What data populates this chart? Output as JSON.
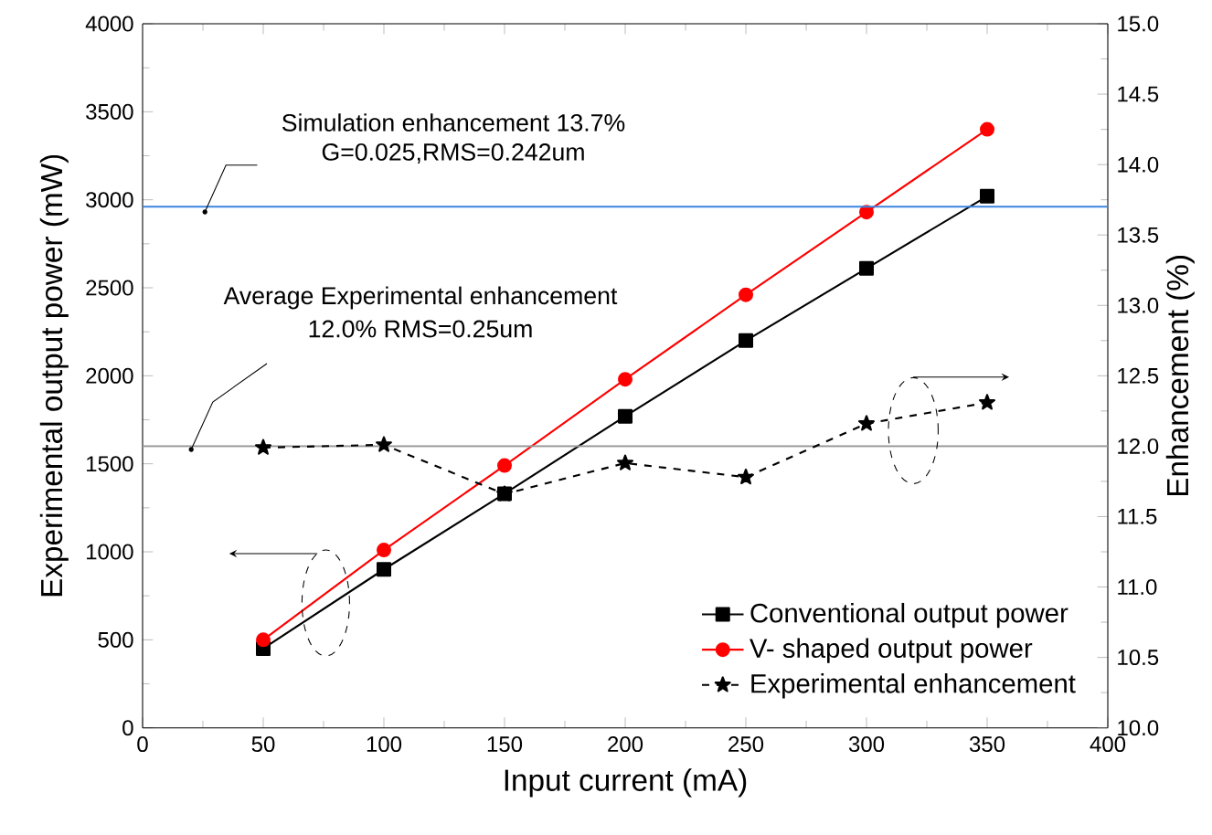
{
  "chart_data": {
    "type": "line",
    "xlabel": "Input current (mA)",
    "ylabel": "Experimental output power (mW)",
    "y2label": "Enhancement (%)",
    "x": [
      50,
      100,
      150,
      200,
      250,
      300,
      350
    ],
    "series": [
      {
        "name": "Conventional  output power",
        "color": "#000000",
        "marker": "square",
        "line_style": "solid",
        "values": [
          450,
          900,
          1330,
          1770,
          2200,
          2610,
          3020
        ]
      },
      {
        "name": "V- shaped  output  power",
        "color": "#ff0000",
        "marker": "circle",
        "line_style": "solid",
        "values": [
          500,
          1010,
          1490,
          1980,
          2460,
          2930,
          3400
        ]
      },
      {
        "name": "Experimental enhancement",
        "color": "#000000",
        "marker": "star",
        "line_style": "dashed",
        "axis": "y2",
        "values": [
          11.99,
          12.01,
          11.66,
          11.88,
          11.78,
          12.16,
          12.31
        ]
      }
    ],
    "xlim": [
      0,
      400
    ],
    "xticks": [
      0,
      50,
      100,
      150,
      200,
      250,
      300,
      350,
      400
    ],
    "ylim": [
      0,
      4000
    ],
    "yticks": [
      0,
      500,
      1000,
      1500,
      2000,
      2500,
      3000,
      3500,
      4000
    ],
    "y2lim": [
      10,
      15
    ],
    "y2ticks": [
      {
        "value": 10,
        "label": "10.0"
      },
      {
        "value": 10.5,
        "label": "10.5"
      },
      {
        "value": 11,
        "label": "11.0"
      },
      {
        "value": 11.5,
        "label": "11.5"
      },
      {
        "value": 12,
        "label": "12.0"
      },
      {
        "value": 12.5,
        "label": "12.5"
      },
      {
        "value": 13,
        "label": "13.0"
      },
      {
        "value": 13.5,
        "label": "13.5"
      },
      {
        "value": 14,
        "label": "14.0"
      },
      {
        "value": 14.5,
        "label": "14.5"
      },
      {
        "value": 15,
        "label": "15.0"
      }
    ],
    "ref_lines": [
      {
        "axis": "y2",
        "value": 13.7,
        "color": "#3d85e0"
      },
      {
        "axis": "y2",
        "value": 12.0,
        "color": "#999999"
      }
    ],
    "annotations": [
      "Simulation enhancement 13.7%",
      "G=0.025,RMS=0.242um",
      "Average Experimental enhancement",
      "12.0%   RMS=0.25um"
    ],
    "legend": "bottom right",
    "grid": false
  }
}
